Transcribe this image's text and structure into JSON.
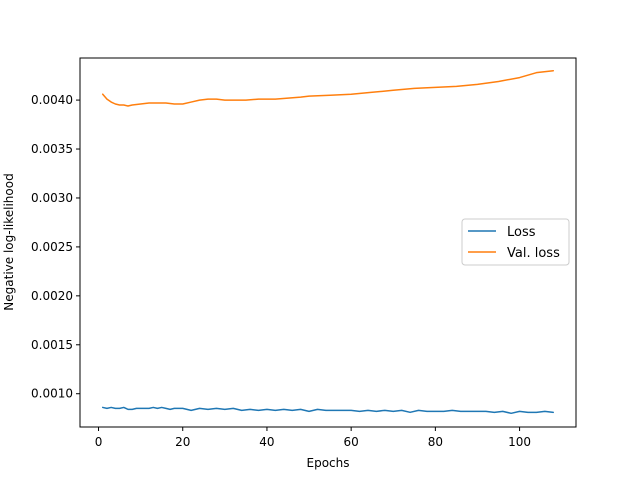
{
  "chart_data": {
    "type": "line",
    "title": "",
    "xlabel": "Epochs",
    "ylabel": "Negative log-likelihood",
    "xlim": [
      -4.4,
      113.4
    ],
    "ylim": [
      0.00066,
      0.00443
    ],
    "xticks": [
      0,
      20,
      40,
      60,
      80,
      100
    ],
    "yticks": [
      0.001,
      0.0015,
      0.002,
      0.0025,
      0.003,
      0.0035,
      0.004
    ],
    "ytick_format": 4,
    "grid": false,
    "legend_position": "center-right",
    "series": [
      {
        "name": "Loss",
        "color": "#1f77b4",
        "x": [
          1,
          2,
          3,
          4,
          5,
          6,
          7,
          8,
          9,
          10,
          11,
          12,
          13,
          14,
          15,
          16,
          17,
          18,
          19,
          20,
          22,
          24,
          26,
          28,
          30,
          32,
          34,
          36,
          38,
          40,
          42,
          44,
          46,
          48,
          50,
          52,
          54,
          56,
          58,
          60,
          62,
          64,
          66,
          68,
          70,
          72,
          74,
          76,
          78,
          80,
          82,
          84,
          86,
          88,
          90,
          92,
          94,
          96,
          98,
          100,
          102,
          104,
          106,
          108
        ],
        "y": [
          0.00086,
          0.00085,
          0.00086,
          0.00085,
          0.00085,
          0.00086,
          0.00084,
          0.00084,
          0.00085,
          0.00085,
          0.00085,
          0.00085,
          0.00086,
          0.00085,
          0.00086,
          0.00085,
          0.00084,
          0.00085,
          0.00085,
          0.00085,
          0.00083,
          0.00085,
          0.00084,
          0.00085,
          0.00084,
          0.00085,
          0.00083,
          0.00084,
          0.00083,
          0.00084,
          0.00083,
          0.00084,
          0.00083,
          0.00084,
          0.00082,
          0.00084,
          0.00083,
          0.00083,
          0.00083,
          0.00083,
          0.00082,
          0.00083,
          0.00082,
          0.00083,
          0.00082,
          0.00083,
          0.00081,
          0.00083,
          0.00082,
          0.00082,
          0.00082,
          0.00083,
          0.00082,
          0.00082,
          0.00082,
          0.00082,
          0.00081,
          0.00082,
          0.0008,
          0.00082,
          0.00081,
          0.00081,
          0.00082,
          0.00081
        ]
      },
      {
        "name": "Val. loss",
        "color": "#ff7f0e",
        "x": [
          1,
          2,
          3,
          4,
          5,
          6,
          7,
          8,
          10,
          12,
          14,
          16,
          18,
          20,
          22,
          24,
          26,
          28,
          30,
          32,
          35,
          38,
          40,
          42,
          45,
          48,
          50,
          55,
          60,
          65,
          70,
          75,
          80,
          85,
          90,
          95,
          100,
          104,
          108
        ],
        "y": [
          0.00406,
          0.00401,
          0.00398,
          0.00396,
          0.00395,
          0.00395,
          0.00394,
          0.00395,
          0.00396,
          0.00397,
          0.00397,
          0.00397,
          0.00396,
          0.00396,
          0.00398,
          0.004,
          0.00401,
          0.00401,
          0.004,
          0.004,
          0.004,
          0.00401,
          0.00401,
          0.00401,
          0.00402,
          0.00403,
          0.00404,
          0.00405,
          0.00406,
          0.00408,
          0.0041,
          0.00412,
          0.00413,
          0.00414,
          0.00416,
          0.00419,
          0.00423,
          0.00428,
          0.0043
        ]
      }
    ]
  }
}
